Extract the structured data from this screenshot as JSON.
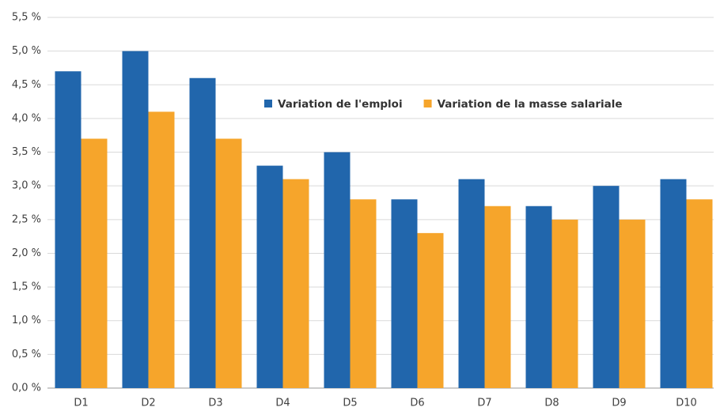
{
  "chart_data": {
    "type": "bar",
    "categories": [
      "D1",
      "D2",
      "D3",
      "D4",
      "D5",
      "D6",
      "D7",
      "D8",
      "D9",
      "D10"
    ],
    "series": [
      {
        "name": "Variation de l'emploi",
        "color": "#2166ac",
        "values": [
          4.7,
          5.0,
          4.6,
          3.3,
          3.5,
          2.8,
          3.1,
          2.7,
          3.0,
          3.1
        ]
      },
      {
        "name": "Variation de la masse salariale",
        "color": "#f6a52b",
        "values": [
          3.7,
          4.1,
          3.7,
          3.1,
          2.8,
          2.3,
          2.7,
          2.5,
          2.5,
          2.8
        ]
      }
    ],
    "ylim": [
      0,
      5.5
    ],
    "yticks": [
      {
        "value": 0,
        "label": "0,0 %"
      },
      {
        "value": 0.5,
        "label": "0,5 %"
      },
      {
        "value": 1,
        "label": "1,0 %"
      },
      {
        "value": 1.5,
        "label": "1,5 %"
      },
      {
        "value": 2,
        "label": "2,0 %"
      },
      {
        "value": 2.5,
        "label": "2,5 %"
      },
      {
        "value": 3,
        "label": "3,0 %"
      },
      {
        "value": 3.5,
        "label": "3,5 %"
      },
      {
        "value": 4,
        "label": "4,0 %"
      },
      {
        "value": 4.5,
        "label": "4,5 %"
      },
      {
        "value": 5,
        "label": "5,0 %"
      },
      {
        "value": 5.5,
        "label": "5,5 %"
      }
    ],
    "grid": true
  }
}
